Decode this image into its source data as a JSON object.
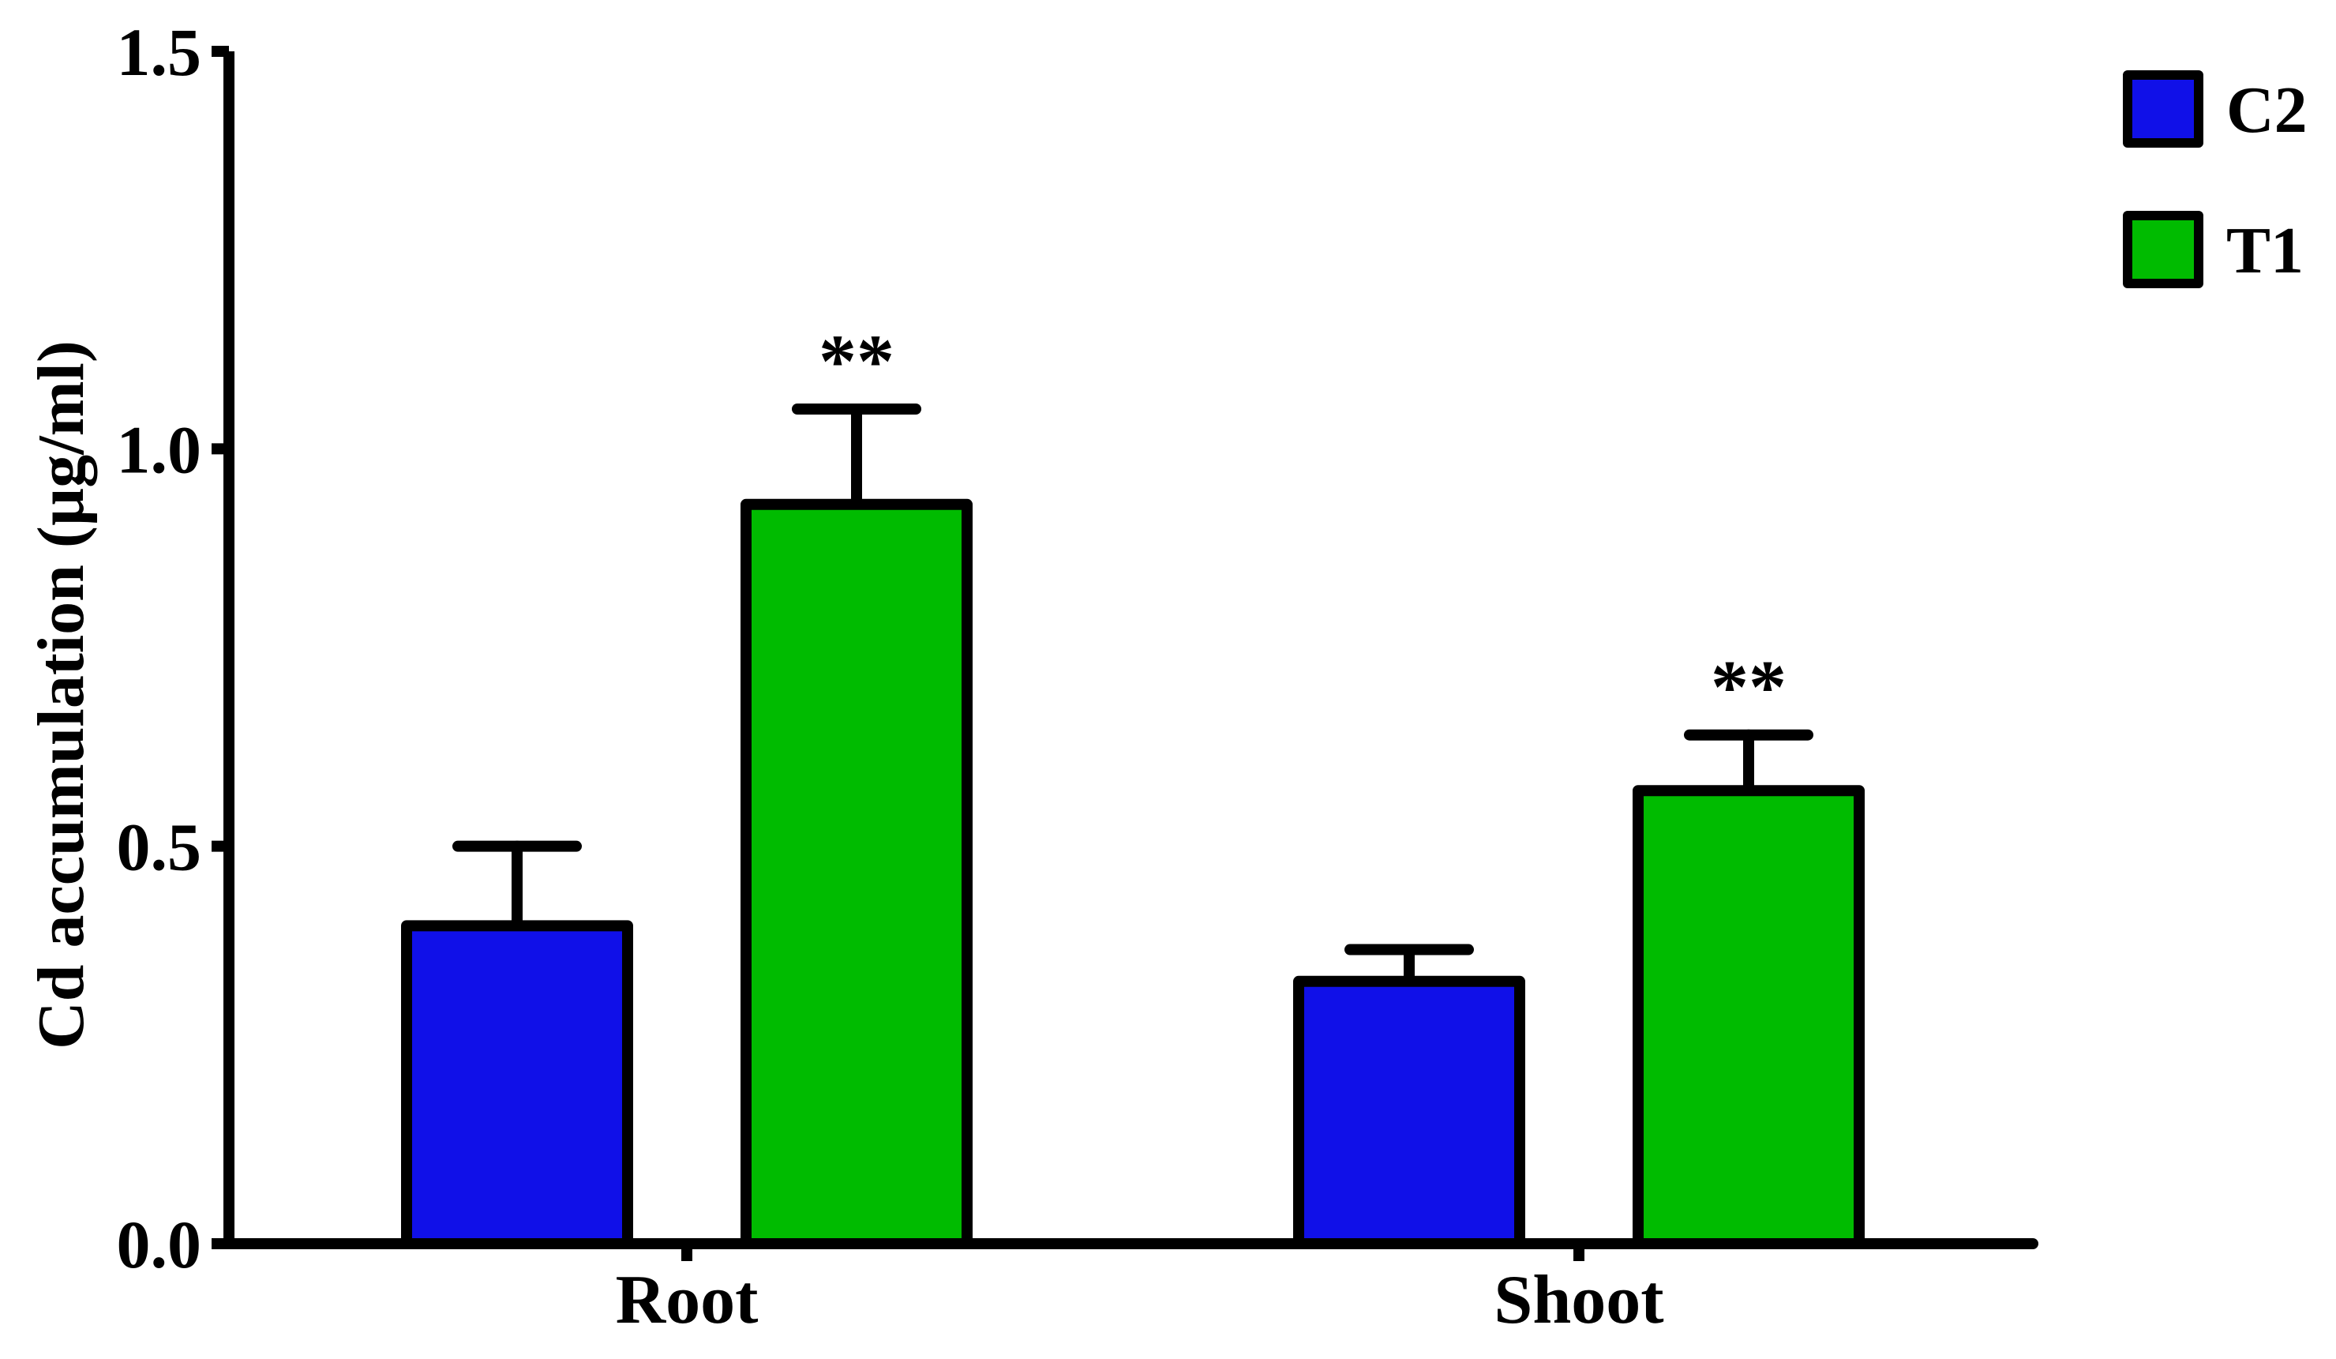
{
  "chart_data": {
    "type": "bar",
    "title": "",
    "ylabel": "Cd accumulation (µg/ml)",
    "xlabel": "",
    "ylim": [
      0,
      1.5
    ],
    "yticks": [
      0.0,
      0.5,
      1.0,
      1.5
    ],
    "ytick_labels": [
      "0.0",
      "0.5",
      "1.0",
      "1.5"
    ],
    "categories": [
      "Root",
      "Shoot"
    ],
    "series": [
      {
        "name": "C2",
        "color": "#1010e8",
        "values": [
          0.4,
          0.33
        ],
        "errors": [
          0.1,
          0.04
        ],
        "significance": [
          "",
          ""
        ]
      },
      {
        "name": "T1",
        "color": "#00bb00",
        "values": [
          0.93,
          0.57
        ],
        "errors": [
          0.12,
          0.07
        ],
        "significance": [
          "**",
          "**"
        ]
      }
    ],
    "legend_position": "top-right",
    "grid": false,
    "error_bars": true
  }
}
